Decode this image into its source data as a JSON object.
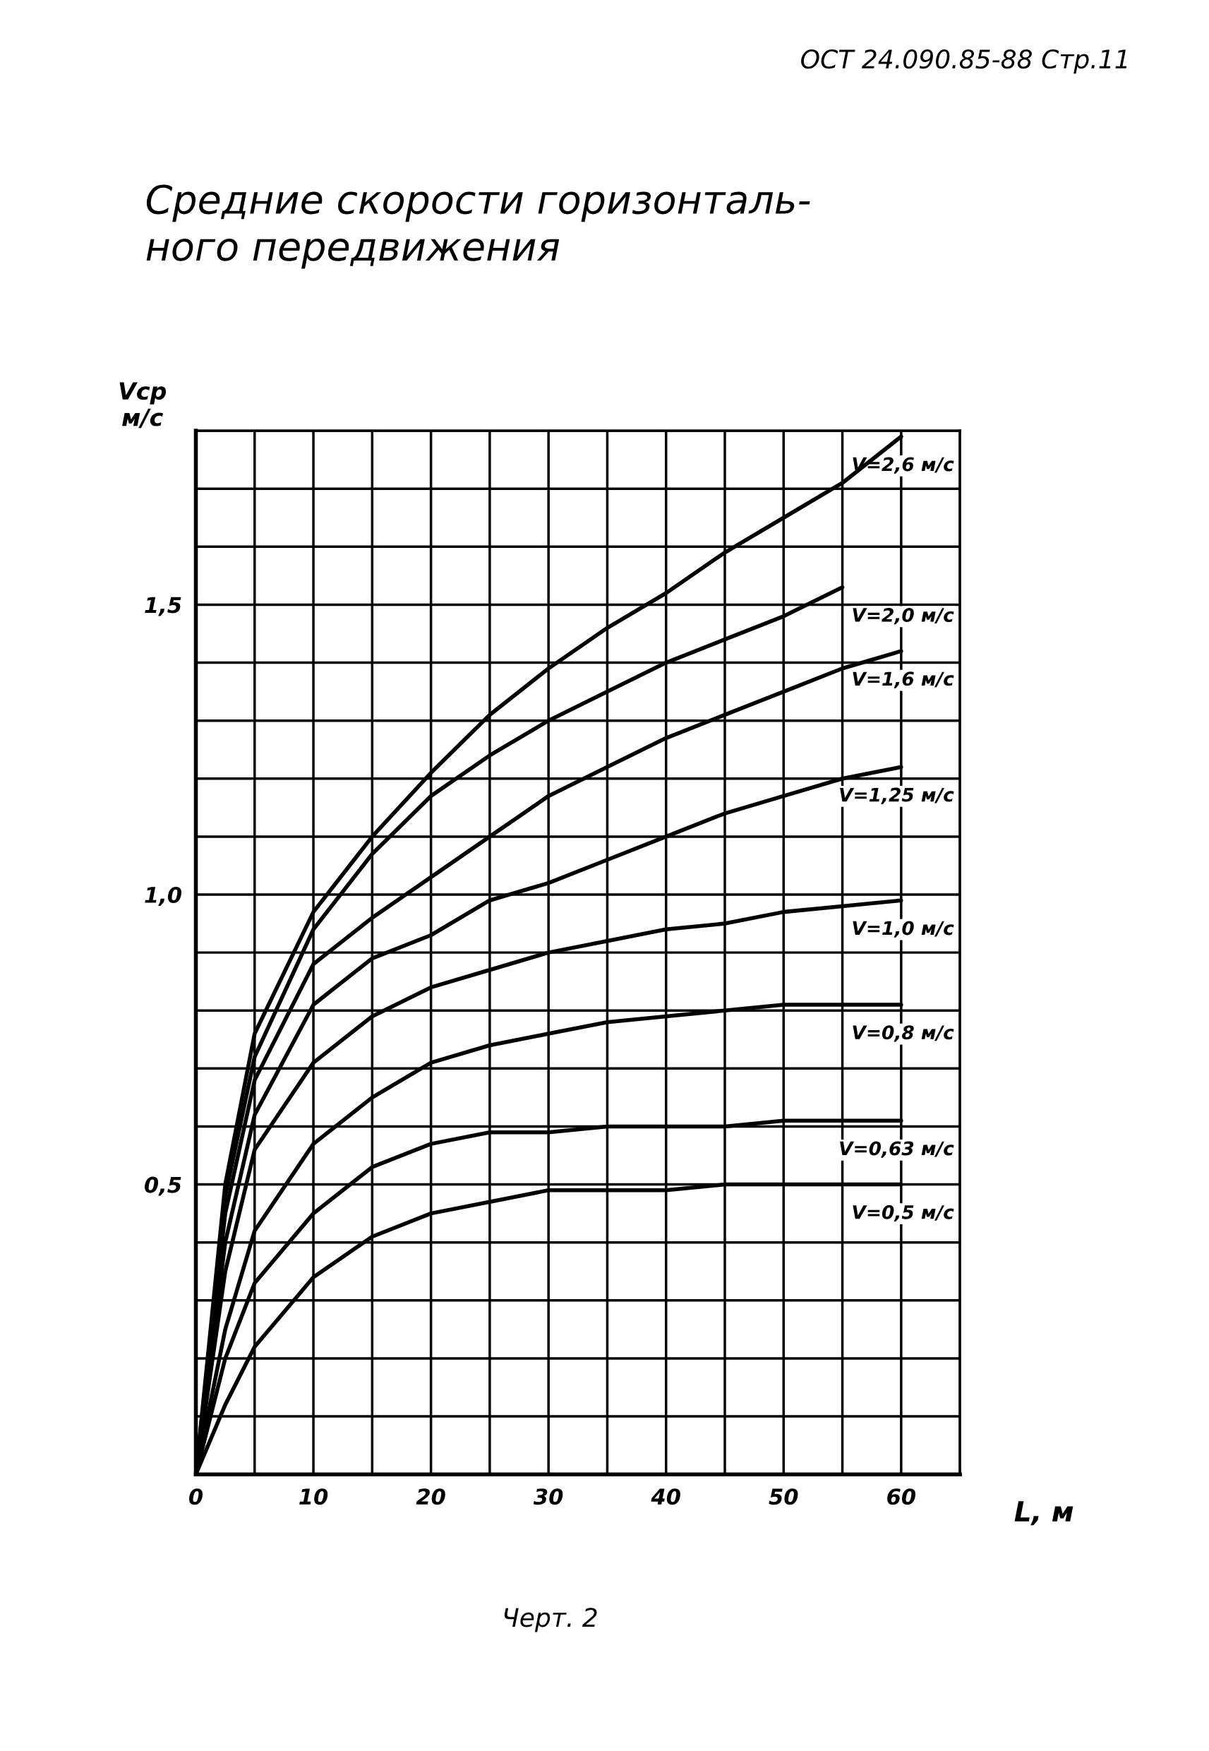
{
  "chart_data": {
    "type": "line",
    "title": "Средние скорости горизонталь-\nного передвижения",
    "annotations": [
      "ОСТ 24.090.85-88 Стр.11",
      "Черт. 2"
    ],
    "xlabel": "L, м",
    "ylabel": "Vср\nм/с",
    "xlim": [
      0,
      65
    ],
    "ylim": [
      0,
      1.8
    ],
    "xticks": [
      0,
      {
        "value": 5,
        "label": null
      },
      10,
      {
        "value": 15,
        "label": null
      },
      20,
      {
        "value": 25,
        "label": null
      },
      30,
      {
        "value": 35,
        "label": null
      },
      40,
      {
        "value": 45,
        "label": null
      },
      50,
      {
        "value": 55,
        "label": null
      },
      60,
      {
        "value": 65,
        "label": null
      }
    ],
    "yticks": [
      {
        "value": 0,
        "label": null
      },
      {
        "value": 0.1,
        "label": null
      },
      {
        "value": 0.2,
        "label": null
      },
      {
        "value": 0.3,
        "label": null
      },
      {
        "value": 0.4,
        "label": null
      },
      {
        "value": 0.5,
        "label": "0,5"
      },
      {
        "value": 0.6,
        "label": null
      },
      {
        "value": 0.7,
        "label": null
      },
      {
        "value": 0.8,
        "label": null
      },
      {
        "value": 0.9,
        "label": null
      },
      {
        "value": 1.0,
        "label": "1,0"
      },
      {
        "value": 1.1,
        "label": null
      },
      {
        "value": 1.2,
        "label": null
      },
      {
        "value": 1.3,
        "label": null
      },
      {
        "value": 1.4,
        "label": null
      },
      {
        "value": 1.5,
        "label": "1,5"
      },
      {
        "value": 1.6,
        "label": null
      },
      {
        "value": 1.7,
        "label": null
      },
      {
        "value": 1.8,
        "label": null
      }
    ],
    "grid": true,
    "legend": false,
    "marker": "none",
    "line_style": "solid",
    "x": [
      0,
      2.5,
      5,
      10,
      15,
      20,
      25,
      30,
      35,
      40,
      45,
      50,
      55,
      60
    ],
    "series": [
      {
        "name": "V=2,6 м/с",
        "color": "#000000",
        "values": [
          0,
          0.5,
          0.76,
          0.97,
          1.1,
          1.21,
          1.31,
          1.39,
          1.46,
          1.52,
          1.59,
          1.65,
          1.71,
          1.79
        ]
      },
      {
        "name": "V=2,0 м/с",
        "color": "#000000",
        "values": [
          0,
          0.48,
          0.72,
          0.94,
          1.07,
          1.17,
          1.24,
          1.3,
          1.35,
          1.4,
          1.44,
          1.48,
          1.53,
          null
        ]
      },
      {
        "name": "V=1,6 м/с",
        "color": "#000000",
        "values": [
          0,
          0.45,
          0.68,
          0.88,
          0.96,
          1.03,
          1.1,
          1.17,
          1.22,
          1.27,
          1.31,
          1.35,
          1.39,
          1.42
        ]
      },
      {
        "name": "V=1,25 м/с",
        "color": "#000000",
        "values": [
          0,
          0.4,
          0.62,
          0.81,
          0.89,
          0.93,
          0.99,
          1.02,
          1.06,
          1.1,
          1.14,
          1.17,
          1.2,
          1.22
        ]
      },
      {
        "name": "V=1,0 м/с",
        "color": "#000000",
        "values": [
          0,
          0.35,
          0.56,
          0.71,
          0.79,
          0.84,
          0.87,
          0.9,
          0.92,
          0.94,
          0.95,
          0.97,
          0.98,
          0.99
        ]
      },
      {
        "name": "V=0,8 м/с",
        "color": "#000000",
        "values": [
          0,
          0.25,
          0.42,
          0.57,
          0.65,
          0.71,
          0.74,
          0.76,
          0.78,
          0.79,
          0.8,
          0.81,
          0.81,
          0.81
        ]
      },
      {
        "name": "V=0,63 м/с",
        "color": "#000000",
        "values": [
          0,
          0.2,
          0.33,
          0.45,
          0.53,
          0.57,
          0.59,
          0.59,
          0.6,
          0.6,
          0.6,
          0.61,
          0.61,
          0.61
        ]
      },
      {
        "name": "V=0,5 м/с",
        "color": "#000000",
        "values": [
          0,
          0.12,
          0.22,
          0.34,
          0.41,
          0.45,
          0.47,
          0.49,
          0.49,
          0.49,
          0.5,
          0.5,
          0.5,
          0.5
        ]
      }
    ]
  }
}
